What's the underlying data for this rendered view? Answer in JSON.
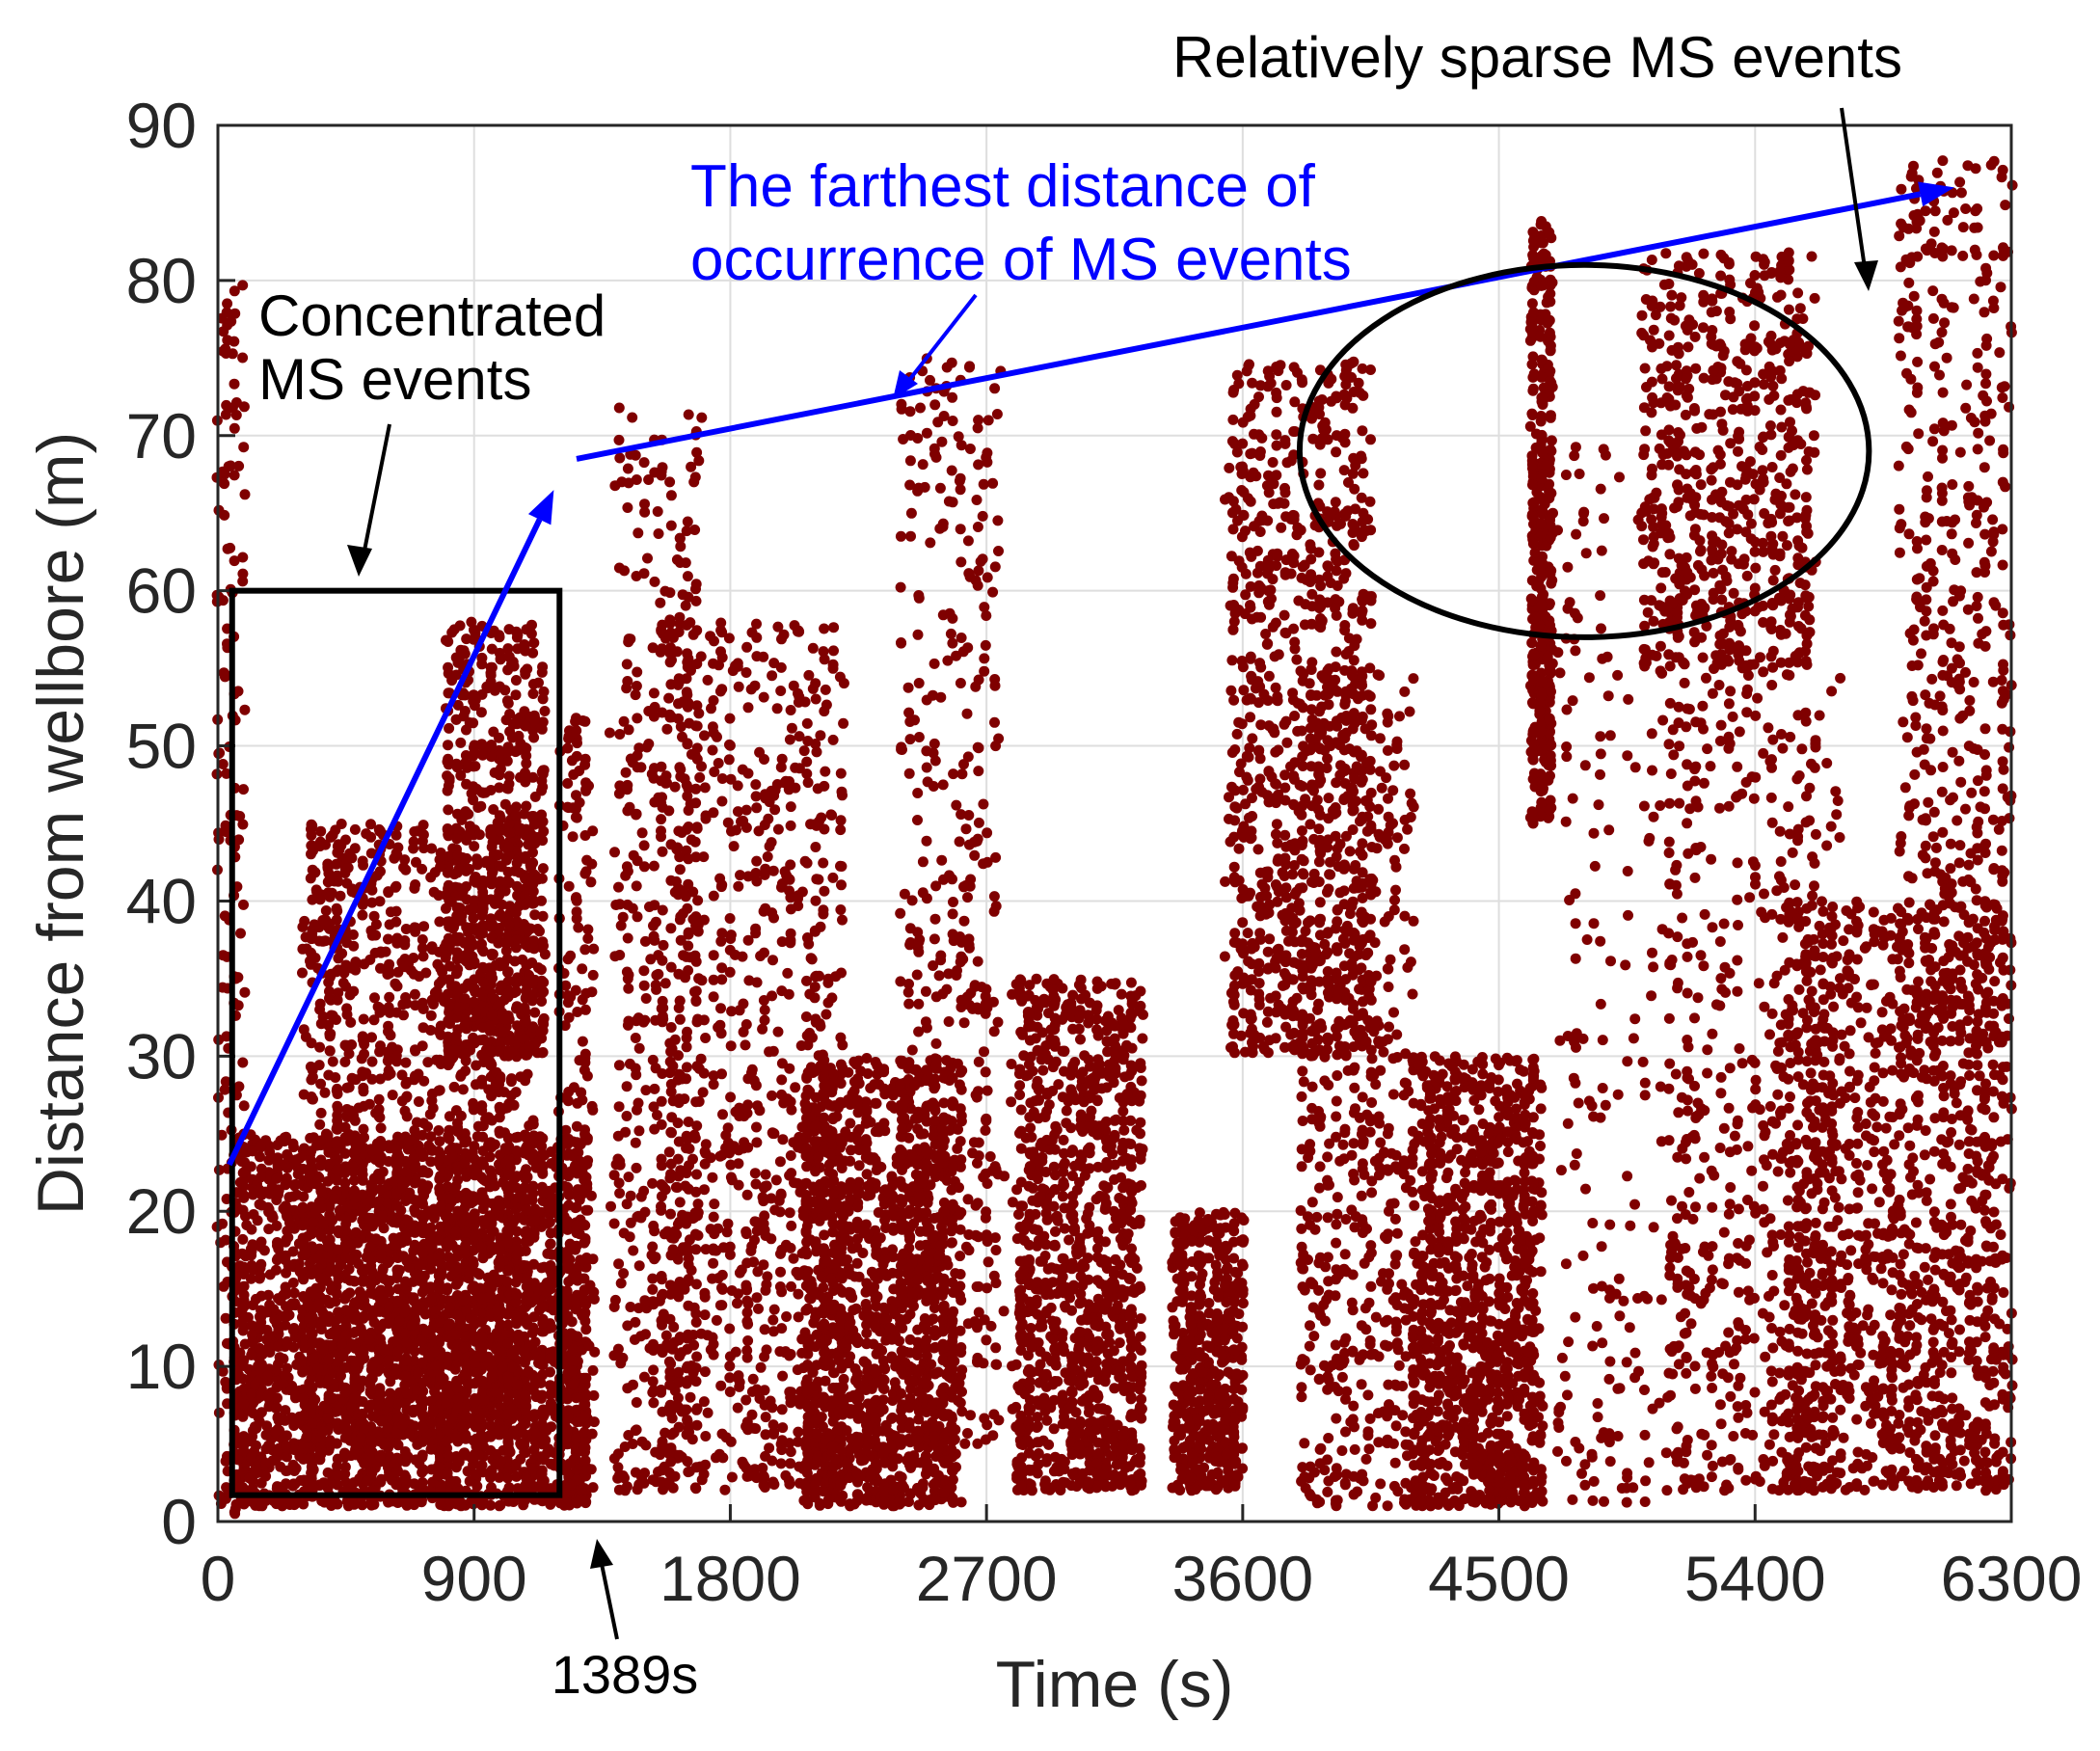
{
  "chart_data": {
    "type": "scatter",
    "title": "",
    "xlabel": "Time (s)",
    "ylabel": "Distance from wellbore (m)",
    "xlim": [
      0,
      6300
    ],
    "ylim": [
      0,
      90
    ],
    "xticks": [
      0,
      900,
      1800,
      2700,
      3600,
      4500,
      5400,
      6300
    ],
    "yticks": [
      0,
      10,
      20,
      30,
      40,
      50,
      60,
      70,
      80,
      90
    ],
    "xtick_labels": [
      "0",
      "900",
      "1800",
      "2700",
      "3600",
      "4500",
      "5400",
      "6300"
    ],
    "ytick_labels": [
      "0",
      "10",
      "20",
      "30",
      "40",
      "50",
      "60",
      "70",
      "80",
      "90"
    ],
    "grid": true,
    "marker_color": "#7f0000",
    "series": [
      {
        "name": "MS events",
        "note": "dense cloud of microseismic events; representative clusters listed (time range, distance range, count)",
        "clusters": [
          {
            "t": [
              0,
              100
            ],
            "d": [
              0,
              80
            ],
            "n": 180
          },
          {
            "t": [
              60,
              1300
            ],
            "d": [
              1,
              25
            ],
            "n": 2600
          },
          {
            "t": [
              300,
              1100
            ],
            "d": [
              5,
              45
            ],
            "n": 1600
          },
          {
            "t": [
              800,
              1150
            ],
            "d": [
              30,
              58
            ],
            "n": 600
          },
          {
            "t": [
              1200,
              1320
            ],
            "d": [
              2,
              52
            ],
            "n": 220
          },
          {
            "t": [
              1389,
              1700
            ],
            "d": [
              2,
              72
            ],
            "n": 450
          },
          {
            "t": [
              1550,
              2200
            ],
            "d": [
              2,
              58
            ],
            "n": 900
          },
          {
            "t": [
              2050,
              2600
            ],
            "d": [
              1,
              30
            ],
            "n": 1300
          },
          {
            "t": [
              2400,
              2750
            ],
            "d": [
              5,
              75
            ],
            "n": 450
          },
          {
            "t": [
              2800,
              3250
            ],
            "d": [
              2,
              35
            ],
            "n": 1100
          },
          {
            "t": [
              3350,
              3600
            ],
            "d": [
              2,
              20
            ],
            "n": 500
          },
          {
            "t": [
              3550,
              4050
            ],
            "d": [
              30,
              75
            ],
            "n": 900
          },
          {
            "t": [
              3800,
              4200
            ],
            "d": [
              1,
              55
            ],
            "n": 550
          },
          {
            "t": [
              4200,
              4650
            ],
            "d": [
              1,
              30
            ],
            "n": 1100
          },
          {
            "t": [
              4610,
              4690
            ],
            "d": [
              45,
              84
            ],
            "n": 400
          },
          {
            "t": [
              4700,
              5200
            ],
            "d": [
              1,
              70
            ],
            "n": 250
          },
          {
            "t": [
              5000,
              5600
            ],
            "d": [
              55,
              82
            ],
            "n": 600
          },
          {
            "t": [
              5100,
              5700
            ],
            "d": [
              2,
              55
            ],
            "n": 550
          },
          {
            "t": [
              5500,
              6300
            ],
            "d": [
              2,
              40
            ],
            "n": 1200
          },
          {
            "t": [
              5900,
              6300
            ],
            "d": [
              30,
              88
            ],
            "n": 500
          }
        ]
      }
    ],
    "annotations": {
      "box_label": [
        "Concentrated",
        "MS events"
      ],
      "blue_label": [
        "The farthest distance of",
        "occurrence of MS events"
      ],
      "ellipse_label": "Relatively sparse MS events",
      "time_marker_label": "1389s",
      "time_marker_value": 1389,
      "box_region": {
        "t": [
          50,
          1200
        ],
        "d": [
          1.7,
          60
        ]
      },
      "blue_front": [
        [
          40,
          23
        ],
        [
          1180,
          66.5
        ],
        [
          1260,
          68.5
        ],
        [
          6100,
          86
        ]
      ],
      "ellipse_region": {
        "t": [
          3800,
          5800
        ],
        "d": [
          57,
          81
        ]
      },
      "blue_color": "#0000ff"
    }
  }
}
